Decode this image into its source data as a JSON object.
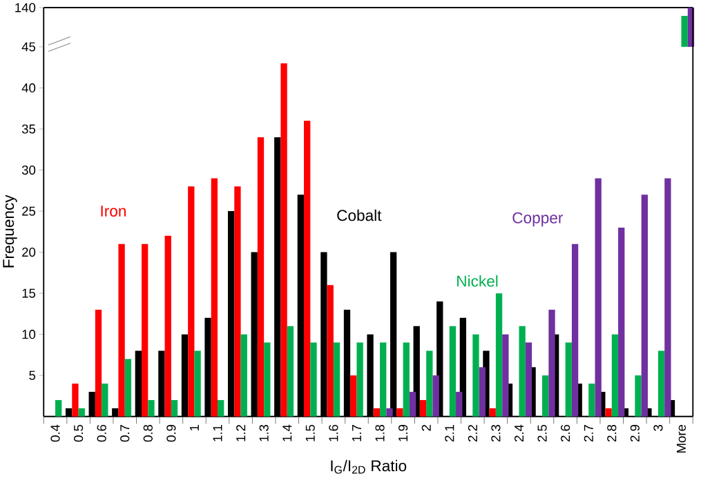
{
  "chart_data": [
    {
      "type": "bar",
      "xlabel": "I$_{G}$/I$_{2D}$ Ratio",
      "ylabel": "Frequency",
      "categories": [
        "0.4",
        "0.5",
        "0.6",
        "0.7",
        "0.8",
        "0.9",
        "1",
        "1.1",
        "1.2",
        "1.3",
        "1.4",
        "1.5",
        "1.6",
        "1.7",
        "1.8",
        "1.9",
        "2",
        "2.1",
        "2.2",
        "2.3",
        "2.4",
        "2.5",
        "2.6",
        "2.7",
        "2.8",
        "2.9",
        "3",
        "More"
      ],
      "series": [
        {
          "name": "Cobalt",
          "color": "#000000",
          "values": [
            0,
            1,
            3,
            1,
            8,
            8,
            10,
            12,
            25,
            20,
            34,
            27,
            20,
            13,
            10,
            20,
            11,
            14,
            12,
            8,
            4,
            6,
            10,
            4,
            3,
            1,
            1,
            2
          ]
        },
        {
          "name": "Iron",
          "color": "#ff0000",
          "values": [
            0,
            4,
            13,
            21,
            21,
            22,
            28,
            29,
            28,
            34,
            43,
            36,
            16,
            5,
            1,
            1,
            2,
            0,
            0,
            1,
            0,
            0,
            0,
            0,
            1,
            0,
            0,
            0
          ]
        },
        {
          "name": "Nickel",
          "color": "#00b050",
          "values": [
            2,
            1,
            4,
            7,
            2,
            2,
            8,
            2,
            10,
            9,
            11,
            9,
            9,
            9,
            9,
            9,
            8,
            11,
            10,
            15,
            11,
            5,
            9,
            4,
            10,
            5,
            8,
            null
          ]
        },
        {
          "name": "Copper",
          "color": "#7030a0",
          "values": [
            0,
            0,
            0,
            0,
            0,
            0,
            0,
            0,
            0,
            0,
            0,
            0,
            0,
            0,
            1,
            3,
            5,
            3,
            6,
            10,
            9,
            13,
            21,
            29,
            23,
            27,
            29,
            null
          ]
        }
      ],
      "ylim": [
        0,
        45
      ],
      "yticks": [
        5,
        10,
        15,
        20,
        25,
        30,
        35,
        40
      ],
      "grid": false,
      "legend": false
    },
    {
      "type": "bar",
      "categories": [
        null,
        null,
        null,
        null,
        null,
        null,
        null,
        null,
        null,
        null,
        null,
        null,
        null,
        null,
        null,
        null,
        null,
        null,
        null,
        null,
        null,
        null,
        null,
        null,
        null,
        null,
        null,
        null
      ],
      "series": [
        {
          "color": "#00b050",
          "values": [
            null,
            null,
            null,
            null,
            null,
            null,
            null,
            null,
            null,
            null,
            null,
            null,
            null,
            null,
            null,
            null,
            null,
            null,
            null,
            null,
            null,
            null,
            null,
            null,
            null,
            null,
            null,
            120
          ]
        },
        {
          "color": "#7030a0",
          "values": [
            null,
            null,
            null,
            null,
            null,
            null,
            null,
            null,
            null,
            null,
            null,
            null,
            null,
            null,
            null,
            null,
            null,
            null,
            null,
            null,
            null,
            null,
            null,
            null,
            null,
            null,
            null,
            140
          ]
        }
      ],
      "ylim": [
        45,
        140
      ],
      "yticks": [
        45,
        140
      ],
      "tick_labels": "y",
      "grid": false,
      "legend": false
    }
  ]
}
